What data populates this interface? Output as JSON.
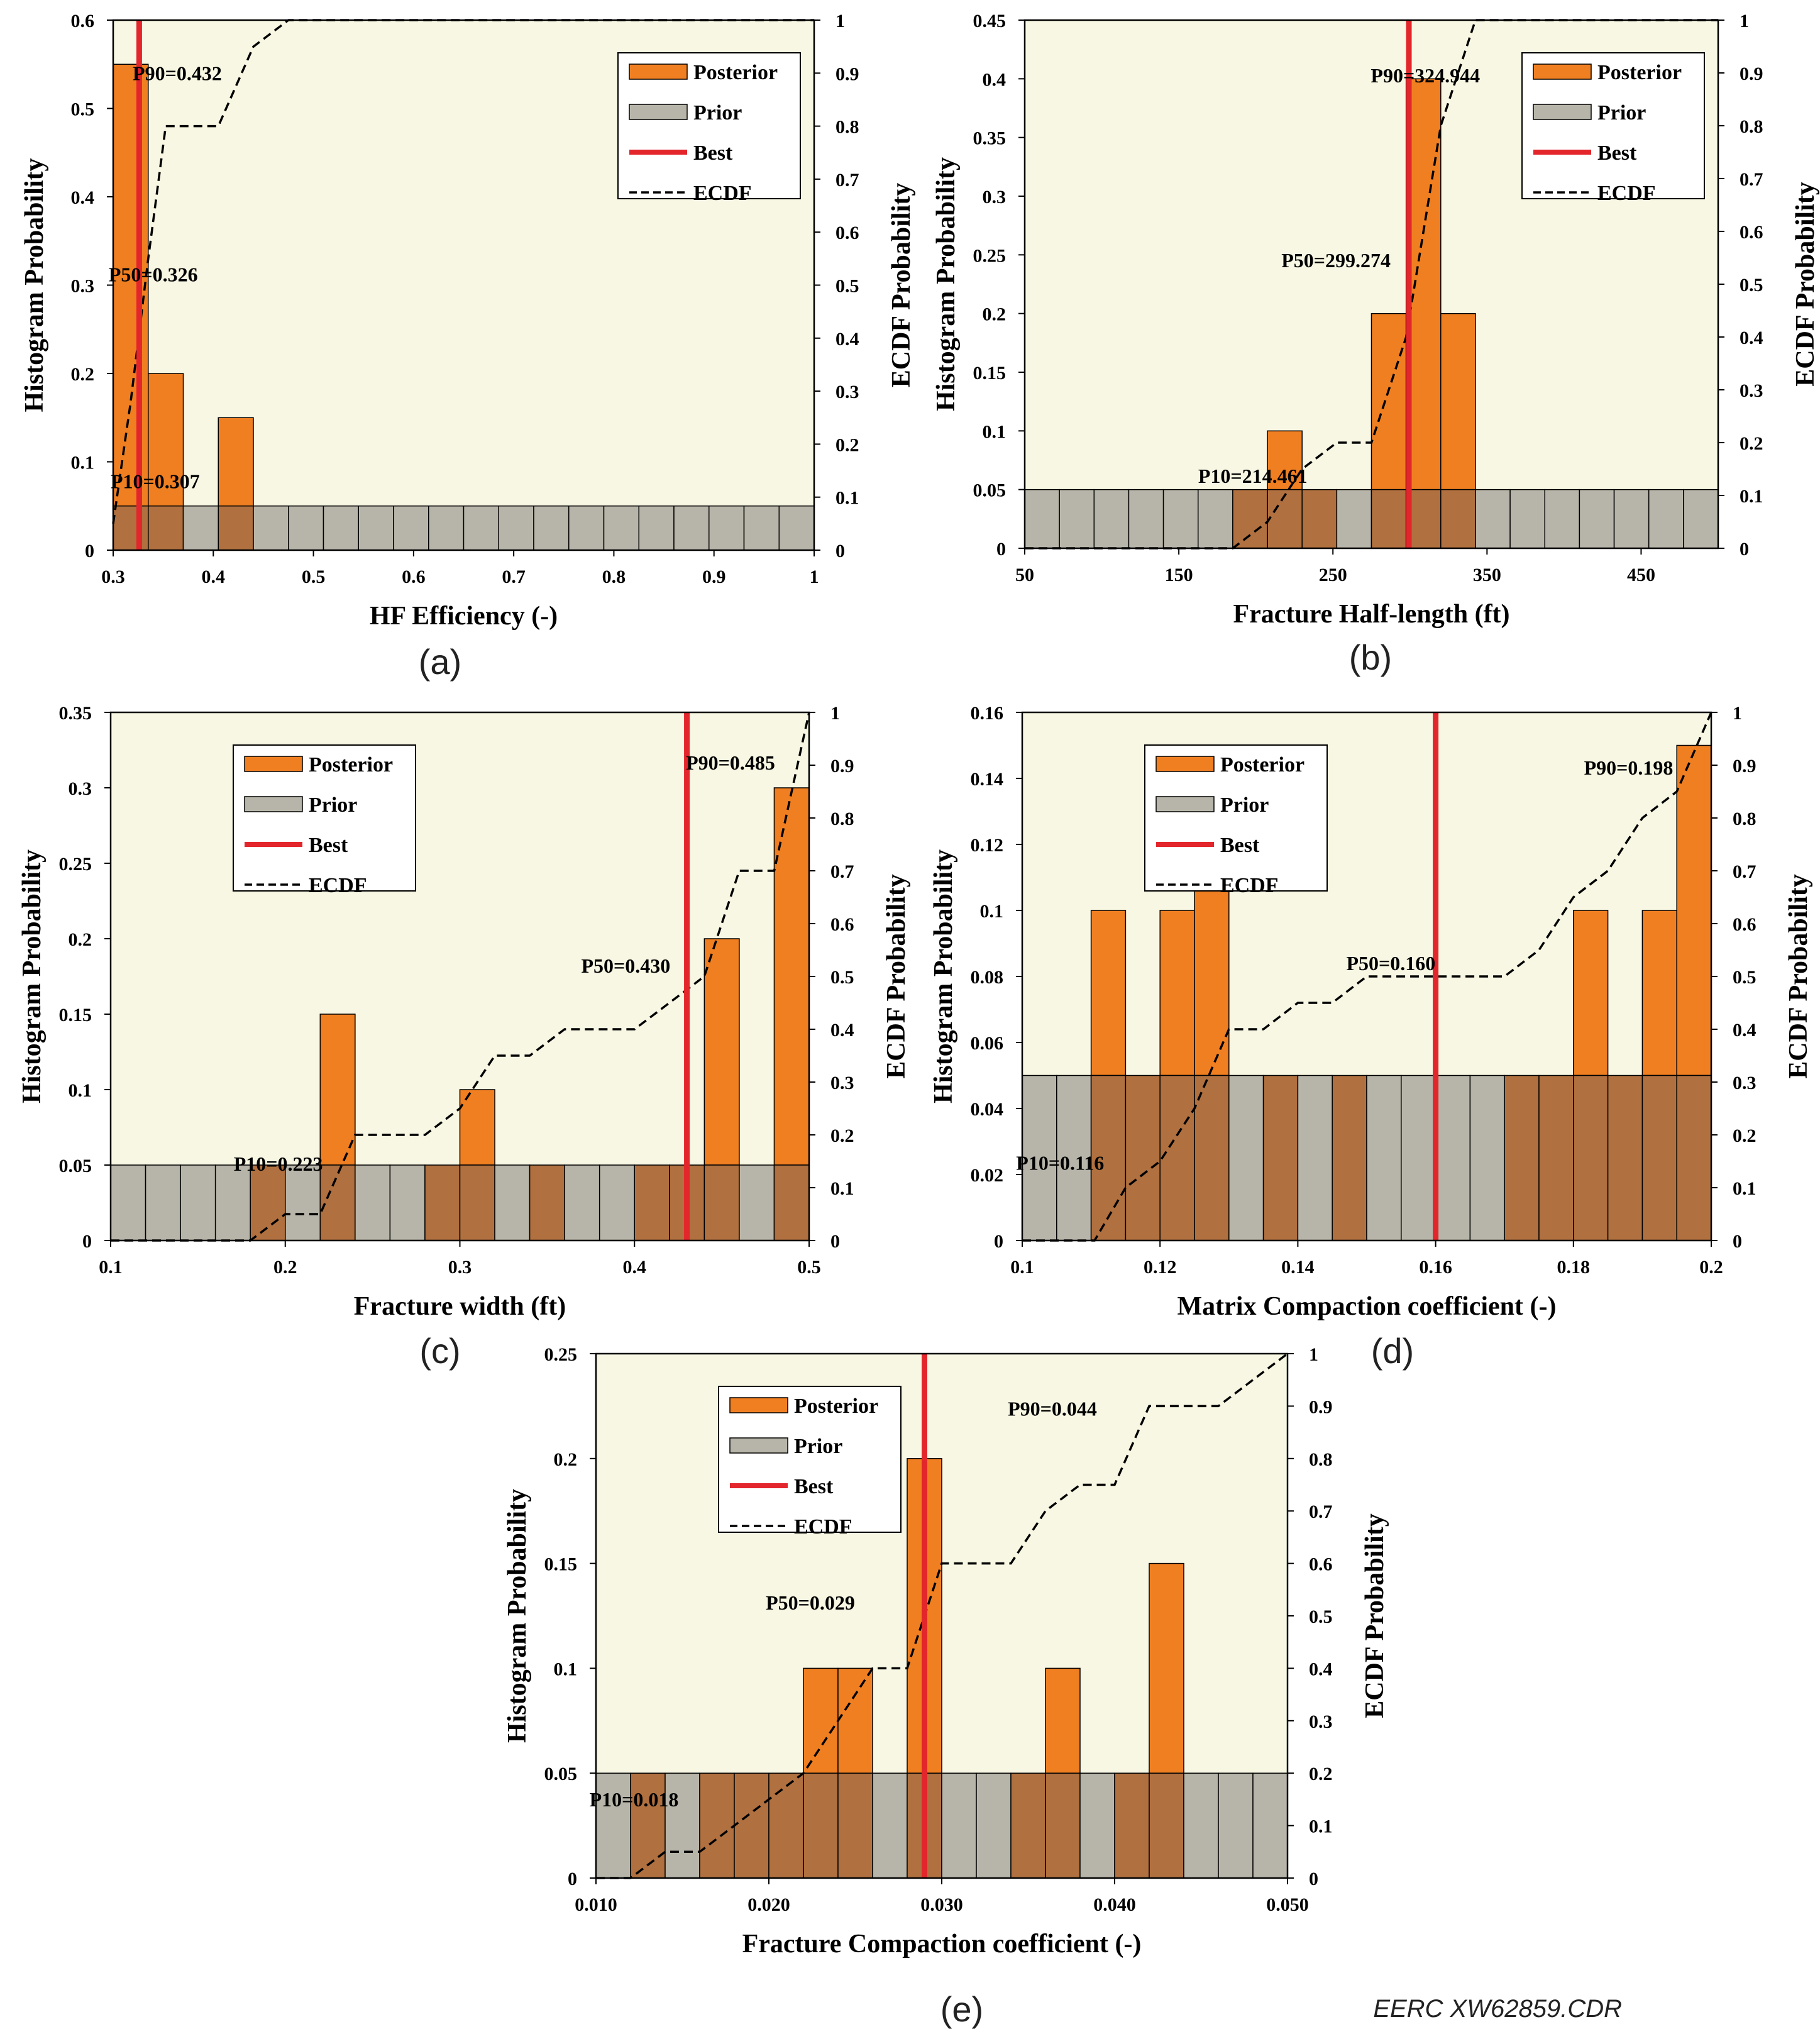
{
  "credit": "EERC XW62859.CDR",
  "legend_labels": {
    "posterior": "Posterior",
    "prior": "Prior",
    "best": "Best",
    "ecdf": "ECDF"
  },
  "colors": {
    "background": "#f8f7e3",
    "posterior": "#f07f22",
    "prior": "#b7b5a9",
    "overlap": "#b0703f",
    "best": "#e3262b",
    "ecdf": "#000000"
  },
  "chart_data": [
    {
      "type": "bar",
      "panel_label": "(a)",
      "xlabel": "HF Efficiency (-)",
      "ylabel": "Histogram Probability",
      "y2label": "ECDF Probability",
      "xlim": [
        0.3,
        1.0
      ],
      "ylim": [
        0,
        0.6
      ],
      "y2lim": [
        0,
        1
      ],
      "xticks": [
        0.3,
        0.4,
        0.5,
        0.6,
        0.7,
        0.8,
        0.9,
        1.0
      ],
      "xtick_labels": [
        "0.3",
        "0.4",
        "0.5",
        "0.6",
        "0.7",
        "0.8",
        "0.9",
        "1"
      ],
      "yticks": [
        0,
        0.1,
        0.2,
        0.3,
        0.4,
        0.5,
        0.6
      ],
      "ytick_labels": [
        "0",
        "0.1",
        "0.2",
        "0.3",
        "0.4",
        "0.5",
        "0.6"
      ],
      "y2ticks": [
        0,
        0.1,
        0.2,
        0.3,
        0.4,
        0.5,
        0.6,
        0.7,
        0.8,
        0.9,
        1.0
      ],
      "y2tick_labels": [
        "0",
        "0.1",
        "0.2",
        "0.3",
        "0.4",
        "0.5",
        "0.6",
        "0.7",
        "0.8",
        "0.9",
        "1"
      ],
      "bins": 20,
      "prior": 0.05,
      "posterior": [
        0.55,
        0.2,
        0,
        0.15,
        0,
        0,
        0,
        0,
        0,
        0,
        0,
        0,
        0,
        0,
        0,
        0,
        0,
        0,
        0,
        0
      ],
      "best": 0.326,
      "ecdf_x": [
        0.3,
        0.3175,
        0.3175,
        0.335,
        0.3525,
        0.37,
        0.37,
        0.405,
        0.405,
        0.44,
        0.44,
        0.475,
        1.0
      ],
      "ecdf_y": [
        0.05,
        0.28,
        0.28,
        0.55,
        0.8,
        0.8,
        0.8,
        0.8,
        0.8,
        0.95,
        0.95,
        1.0,
        1.0
      ],
      "annotations": [
        {
          "text": "P90=0.432",
          "x": 0.364,
          "y": 0.9
        },
        {
          "text": "P50=0.326",
          "x": 0.34,
          "y": 0.52
        },
        {
          "text": "P10=0.307",
          "x": 0.342,
          "y": 0.13
        }
      ],
      "legend": "top-right"
    },
    {
      "type": "bar",
      "panel_label": "(b)",
      "xlabel": "Fracture Half-length (ft)",
      "ylabel": "Histogram Probability",
      "y2label": "ECDF Probability",
      "xlim": [
        50,
        500
      ],
      "ylim": [
        0,
        0.45
      ],
      "y2lim": [
        0,
        1
      ],
      "xticks": [
        50,
        150,
        250,
        350,
        450
      ],
      "xtick_labels": [
        "50",
        "150",
        "250",
        "350",
        "450"
      ],
      "yticks": [
        0,
        0.05,
        0.1,
        0.15,
        0.2,
        0.25,
        0.3,
        0.35,
        0.4,
        0.45
      ],
      "ytick_labels": [
        "0",
        "0.05",
        "0.1",
        "0.15",
        "0.2",
        "0.25",
        "0.3",
        "0.35",
        "0.4",
        "0.45"
      ],
      "y2ticks": [
        0,
        0.1,
        0.2,
        0.3,
        0.4,
        0.5,
        0.6,
        0.7,
        0.8,
        0.9,
        1.0
      ],
      "y2tick_labels": [
        "0",
        "0.1",
        "0.2",
        "0.3",
        "0.4",
        "0.5",
        "0.6",
        "0.7",
        "0.8",
        "0.9",
        "1"
      ],
      "bins": 20,
      "prior": 0.05,
      "posterior": [
        0,
        0,
        0,
        0,
        0,
        0,
        0.05,
        0.1,
        0.05,
        0,
        0.2,
        0.4,
        0.2,
        0,
        0,
        0,
        0,
        0,
        0,
        0
      ],
      "best": 299.274,
      "ecdf_x": [
        50,
        185,
        207.5,
        230,
        252.5,
        275,
        297.5,
        320,
        342.5,
        500
      ],
      "ecdf_y": [
        0,
        0,
        0.05,
        0.15,
        0.2,
        0.2,
        0.4,
        0.8,
        1.0,
        1.0
      ],
      "annotations": [
        {
          "text": "P90=324.944",
          "x": 310,
          "y": 0.895
        },
        {
          "text": "P50=299.274",
          "x": 252,
          "y": 0.545
        },
        {
          "text": "P10=214.461",
          "x": 198,
          "y": 0.137
        }
      ],
      "legend": "top-right"
    },
    {
      "type": "bar",
      "panel_label": "(c)",
      "xlabel": "Fracture width (ft)",
      "ylabel": "Histogram Probability",
      "y2label": "ECDF Probability",
      "xlim": [
        0.1,
        0.5
      ],
      "ylim": [
        0,
        0.35
      ],
      "y2lim": [
        0,
        1
      ],
      "xticks": [
        0.1,
        0.2,
        0.3,
        0.4,
        0.5
      ],
      "xtick_labels": [
        "0.1",
        "0.2",
        "0.3",
        "0.4",
        "0.5"
      ],
      "yticks": [
        0,
        0.05,
        0.1,
        0.15,
        0.2,
        0.25,
        0.3,
        0.35
      ],
      "ytick_labels": [
        "0",
        "0.05",
        "0.1",
        "0.15",
        "0.2",
        "0.25",
        "0.3",
        "0.35"
      ],
      "y2ticks": [
        0,
        0.1,
        0.2,
        0.3,
        0.4,
        0.5,
        0.6,
        0.7,
        0.8,
        0.9,
        1.0
      ],
      "y2tick_labels": [
        "0",
        "0.1",
        "0.2",
        "0.3",
        "0.4",
        "0.5",
        "0.6",
        "0.7",
        "0.8",
        "0.9",
        "1"
      ],
      "bins": 20,
      "prior": 0.05,
      "posterior": [
        0,
        0,
        0,
        0,
        0.05,
        0,
        0.15,
        0,
        0,
        0.05,
        0.1,
        0,
        0.05,
        0,
        0,
        0.05,
        0.05,
        0.2,
        0,
        0.3
      ],
      "best": 0.43,
      "ecdf_x": [
        0.1,
        0.18,
        0.2,
        0.22,
        0.24,
        0.26,
        0.28,
        0.3,
        0.32,
        0.34,
        0.36,
        0.38,
        0.4,
        0.42,
        0.44,
        0.46,
        0.48,
        0.5
      ],
      "ecdf_y": [
        0,
        0,
        0.05,
        0.05,
        0.2,
        0.2,
        0.2,
        0.25,
        0.35,
        0.35,
        0.4,
        0.4,
        0.4,
        0.45,
        0.5,
        0.7,
        0.7,
        1.0
      ],
      "annotations": [
        {
          "text": "P90=0.485",
          "x": 0.455,
          "y": 0.905
        },
        {
          "text": "P50=0.430",
          "x": 0.395,
          "y": 0.52
        },
        {
          "text": "P10=0.223",
          "x": 0.196,
          "y": 0.145
        }
      ],
      "legend": "top-left"
    },
    {
      "type": "bar",
      "panel_label": "(d)",
      "xlabel": "Matrix Compaction coefficient (-)",
      "ylabel": "Histogram Probability",
      "y2label": "ECDF Probability",
      "xlim": [
        0.1,
        0.2
      ],
      "ylim": [
        0,
        0.16
      ],
      "y2lim": [
        0,
        1
      ],
      "xticks": [
        0.1,
        0.12,
        0.14,
        0.16,
        0.18,
        0.2
      ],
      "xtick_labels": [
        "0.1",
        "0.12",
        "0.14",
        "0.16",
        "0.18",
        "0.2"
      ],
      "yticks": [
        0,
        0.02,
        0.04,
        0.06,
        0.08,
        0.1,
        0.12,
        0.14,
        0.16
      ],
      "ytick_labels": [
        "0",
        "0.02",
        "0.04",
        "0.06",
        "0.08",
        "0.1",
        "0.12",
        "0.14",
        "0.16"
      ],
      "y2ticks": [
        0,
        0.1,
        0.2,
        0.3,
        0.4,
        0.5,
        0.6,
        0.7,
        0.8,
        0.9,
        1.0
      ],
      "y2tick_labels": [
        "0",
        "0.1",
        "0.2",
        "0.3",
        "0.4",
        "0.5",
        "0.6",
        "0.7",
        "0.8",
        "0.9",
        "1"
      ],
      "bins": 20,
      "prior": 0.05,
      "posterior": [
        0,
        0,
        0.1,
        0.05,
        0.1,
        0.15,
        0,
        0.05,
        0,
        0.05,
        0,
        0,
        0,
        0,
        0.05,
        0.05,
        0.1,
        0.05,
        0.1,
        0.15
      ],
      "best": 0.16,
      "ecdf_x": [
        0.1,
        0.1105,
        0.115,
        0.12,
        0.125,
        0.13,
        0.135,
        0.14,
        0.145,
        0.15,
        0.155,
        0.16,
        0.165,
        0.17,
        0.175,
        0.18,
        0.185,
        0.19,
        0.195,
        0.2
      ],
      "ecdf_y": [
        0,
        0,
        0.1,
        0.15,
        0.25,
        0.4,
        0.4,
        0.45,
        0.45,
        0.5,
        0.5,
        0.5,
        0.5,
        0.5,
        0.55,
        0.65,
        0.7,
        0.8,
        0.85,
        1.0
      ],
      "annotations": [
        {
          "text": "P90=0.198",
          "x": 0.188,
          "y": 0.895
        },
        {
          "text": "P50=0.160",
          "x": 0.1535,
          "y": 0.525
        },
        {
          "text": "P10=0.116",
          "x": 0.1055,
          "y": 0.147
        }
      ],
      "legend": "top-left"
    },
    {
      "type": "bar",
      "panel_label": "(e)",
      "xlabel": "Fracture Compaction coefficient (-)",
      "ylabel": "Histogram Probability",
      "y2label": "ECDF Probability",
      "xlim": [
        0.01,
        0.05
      ],
      "ylim": [
        0,
        0.25
      ],
      "y2lim": [
        0,
        1
      ],
      "xticks": [
        0.01,
        0.02,
        0.03,
        0.04,
        0.05
      ],
      "xtick_labels": [
        "0.010",
        "0.020",
        "0.030",
        "0.040",
        "0.050"
      ],
      "yticks": [
        0,
        0.05,
        0.1,
        0.15,
        0.2,
        0.25
      ],
      "ytick_labels": [
        "0",
        "0.05",
        "0.1",
        "0.15",
        "0.2",
        "0.25"
      ],
      "y2ticks": [
        0,
        0.1,
        0.2,
        0.3,
        0.4,
        0.5,
        0.6,
        0.7,
        0.8,
        0.9,
        1.0
      ],
      "y2tick_labels": [
        "0",
        "0.1",
        "0.2",
        "0.3",
        "0.4",
        "0.5",
        "0.6",
        "0.7",
        "0.8",
        "0.9",
        "1"
      ],
      "bins": 20,
      "prior": 0.05,
      "posterior": [
        0,
        0.05,
        0,
        0.05,
        0.05,
        0.05,
        0.1,
        0.1,
        0,
        0.2,
        0,
        0,
        0.05,
        0.1,
        0,
        0.05,
        0.15,
        0,
        0,
        0
      ],
      "best": 0.029,
      "ecdf_x": [
        0.01,
        0.012,
        0.014,
        0.016,
        0.018,
        0.02,
        0.022,
        0.024,
        0.026,
        0.028,
        0.03,
        0.032,
        0.034,
        0.036,
        0.038,
        0.04,
        0.042,
        0.044,
        0.046,
        0.048,
        0.05
      ],
      "ecdf_y": [
        0,
        0,
        0.05,
        0.05,
        0.1,
        0.15,
        0.2,
        0.3,
        0.4,
        0.4,
        0.6,
        0.6,
        0.6,
        0.7,
        0.75,
        0.75,
        0.9,
        0.9,
        0.9,
        0.95,
        1.0
      ],
      "annotations": [
        {
          "text": "P90=0.044",
          "x": 0.0364,
          "y": 0.895
        },
        {
          "text": "P50=0.029",
          "x": 0.0224,
          "y": 0.525
        },
        {
          "text": "P10=0.018",
          "x": 0.0122,
          "y": 0.15
        }
      ],
      "legend": "top-left"
    }
  ]
}
